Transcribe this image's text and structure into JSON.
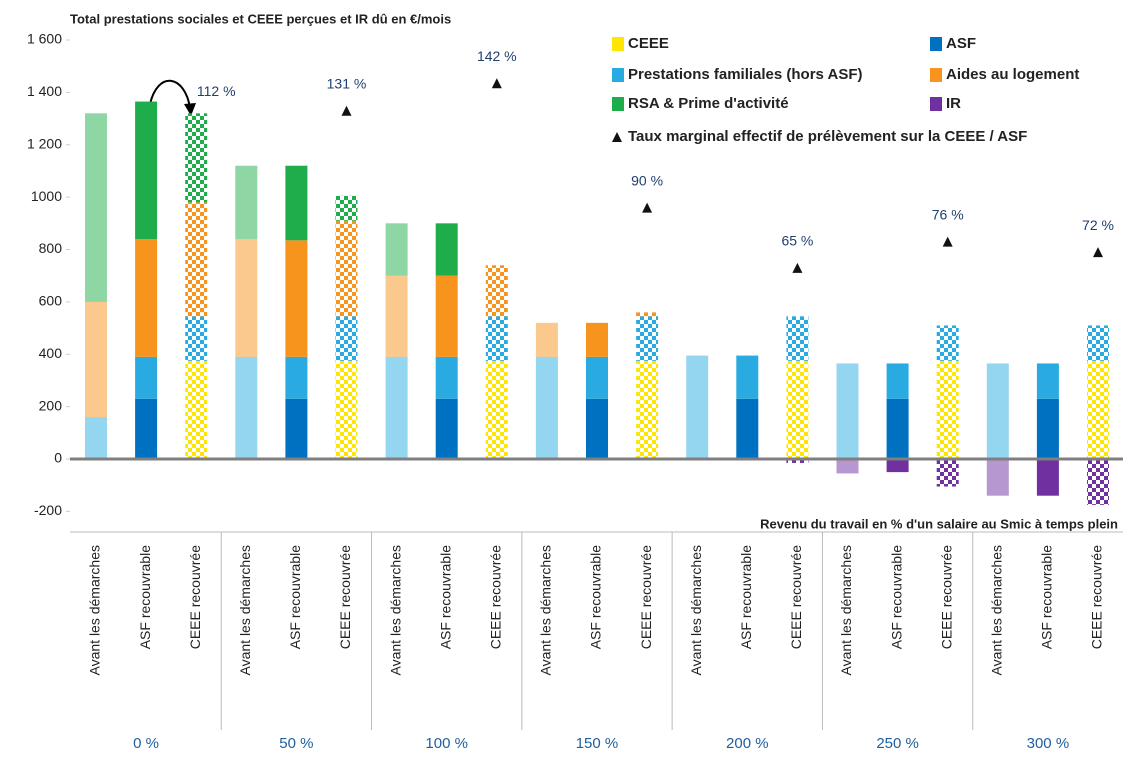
{
  "chart_data": {
    "type": "bar",
    "stacked": true,
    "title": "Total prestations sociales et CEEE perçues et IR dû en €/mois",
    "x_label": "Revenu du travail en % d'un salaire au Smic à temps plein",
    "groups": [
      "0 %",
      "50 %",
      "100 %",
      "150 %",
      "200 %",
      "250 %",
      "300 %"
    ],
    "categories": [
      "Avant les démarches",
      "ASF recouvrable",
      "CEEE recouvrée",
      "Avant les démarches",
      "ASF recouvrable",
      "CEEE recouvrée",
      "Avant les démarches",
      "ASF recouvrable",
      "CEEE recouvrée",
      "Avant les démarches",
      "ASF recouvrable",
      "CEEE recouvrée",
      "Avant les démarches",
      "ASF recouvrable",
      "CEEE recouvrée",
      "Avant les démarches",
      "ASF recouvrable",
      "CEEE recouvrée",
      "Avant les démarches",
      "ASF recouvrable",
      "CEEE recouvrée"
    ],
    "bar_styles": [
      "faded",
      "solid",
      "checkered",
      "faded",
      "solid",
      "checkered",
      "faded",
      "solid",
      "checkered",
      "faded",
      "solid",
      "checkered",
      "faded",
      "solid",
      "checkered",
      "faded",
      "solid",
      "checkered",
      "faded",
      "solid",
      "checkered"
    ],
    "series": [
      {
        "name": "CEEE",
        "color": "#ffe600",
        "values": [
          0,
          0,
          375,
          0,
          0,
          375,
          0,
          0,
          375,
          0,
          0,
          375,
          0,
          0,
          375,
          0,
          0,
          375,
          0,
          0,
          375
        ]
      },
      {
        "name": "ASF",
        "color": "#0070c0",
        "values": [
          0,
          230,
          0,
          0,
          230,
          0,
          0,
          230,
          0,
          0,
          230,
          0,
          0,
          230,
          0,
          0,
          230,
          0,
          0,
          230,
          0
        ]
      },
      {
        "name": "Prestations familiales (hors ASF)",
        "color": "#29abe2",
        "values": [
          160,
          160,
          170,
          390,
          160,
          170,
          390,
          160,
          170,
          390,
          160,
          170,
          395,
          165,
          170,
          365,
          135,
          135,
          365,
          135,
          135
        ]
      },
      {
        "name": "Aides au logement",
        "color": "#f7941d",
        "values": [
          440,
          450,
          435,
          450,
          445,
          365,
          310,
          310,
          195,
          130,
          130,
          15,
          0,
          0,
          0,
          0,
          0,
          0,
          0,
          0,
          0
        ]
      },
      {
        "name": "RSA & Prime d'activité",
        "color": "#1fad4b",
        "values": [
          720,
          525,
          340,
          280,
          285,
          95,
          200,
          200,
          0,
          0,
          0,
          0,
          0,
          0,
          0,
          0,
          0,
          0,
          0,
          0,
          0
        ]
      },
      {
        "name": "IR",
        "color": "#7030a0",
        "values": [
          0,
          0,
          0,
          0,
          0,
          0,
          0,
          0,
          0,
          0,
          0,
          0,
          0,
          0,
          -15,
          -55,
          -50,
          -105,
          -140,
          -140,
          -175
        ]
      }
    ],
    "markers": {
      "name": "Taux marginal effectif de prélèvement sur la CEEE / ASF",
      "color": "#111",
      "values": [
        112,
        131,
        142,
        90,
        65,
        76,
        72
      ],
      "value_labels": [
        "112 %",
        "131 %",
        "142 %",
        "90 %",
        "65 %",
        "76 %",
        "72 %"
      ],
      "y_positions": [
        null,
        1330,
        1435,
        960,
        730,
        830,
        790
      ]
    },
    "ylim": [
      -200,
      1600
    ],
    "yticks": [
      -200,
      0,
      200,
      400,
      600,
      800,
      1000,
      {
        "value": 1200,
        "label": "1 200"
      },
      {
        "value": 1400,
        "label": "1 400"
      },
      {
        "value": 1600,
        "label": "1 600"
      }
    ]
  }
}
